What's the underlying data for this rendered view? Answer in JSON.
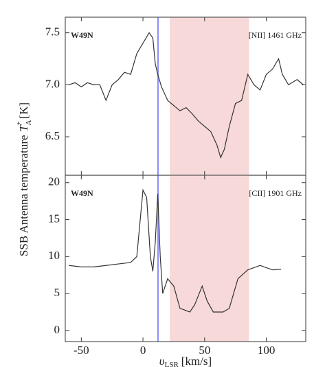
{
  "chart_data": [
    {
      "type": "line",
      "name_label": "W49N",
      "line_label": "[NII] 1461 GHz",
      "y_label": {
        "text": "SSB Antenna temperature",
        "symbol": "T",
        "sup": "*",
        "sub": "A",
        "unit": "[K]"
      },
      "xlim": [
        -63,
        132
      ],
      "xticks": [
        -50,
        0,
        50,
        100
      ],
      "ylim": [
        6.13,
        7.65
      ],
      "yticks": [
        6.5,
        {
          "value": 7,
          "label": "7.0"
        },
        7.5
      ],
      "shade": [
        21.7,
        86
      ],
      "shade_color": "#f7d9d9",
      "vline": 12.2,
      "vline_color": "#8c8cff",
      "x": [
        -60,
        -55,
        -50,
        -45,
        -40,
        -35,
        -30,
        -25,
        -20,
        -15,
        -10,
        -5,
        0,
        5,
        8,
        10,
        12,
        15,
        20,
        25,
        30,
        35,
        40,
        45,
        50,
        55,
        60,
        63,
        66,
        70,
        75,
        80,
        85,
        90,
        95,
        100,
        105,
        110,
        113,
        118,
        125,
        130
      ],
      "series": [
        {
          "color": "#333333",
          "values": [
            7.0,
            7.02,
            6.98,
            7.02,
            7.0,
            7.0,
            6.85,
            7.0,
            7.05,
            7.12,
            7.1,
            7.3,
            7.4,
            7.5,
            7.45,
            7.2,
            7.1,
            6.98,
            6.85,
            6.8,
            6.75,
            6.78,
            6.72,
            6.65,
            6.6,
            6.55,
            6.42,
            6.3,
            6.38,
            6.6,
            6.82,
            6.85,
            7.1,
            7.0,
            6.95,
            7.1,
            7.15,
            7.25,
            7.1,
            7.0,
            7.05,
            7.0
          ]
        }
      ]
    },
    {
      "type": "line",
      "name_label": "W49N",
      "line_label": "[CII] 1901 GHz",
      "x_label": {
        "symbol": "υ",
        "sub": "LSR",
        "unit": "[km/s]"
      },
      "xlim": [
        -63,
        132
      ],
      "xticks": [
        -50,
        0,
        50,
        100
      ],
      "ylim": [
        -1.5,
        21
      ],
      "yticks": [
        0,
        5,
        10,
        15,
        20
      ],
      "shade": [
        21.7,
        86
      ],
      "shade_color": "#f7d9d9",
      "vline": 12.2,
      "vline_color": "#8c8cff",
      "x": [
        -60,
        -50,
        -40,
        -30,
        -20,
        -10,
        -5,
        0,
        3,
        6,
        8,
        10,
        12,
        14,
        16,
        20,
        25,
        30,
        38,
        42,
        48,
        52,
        57,
        65,
        70,
        77,
        85,
        95,
        105,
        112
      ],
      "series": [
        {
          "color": "#333333",
          "values": [
            8.8,
            8.6,
            8.6,
            8.8,
            9.0,
            9.2,
            10,
            19,
            18,
            10,
            8,
            12,
            18.5,
            10,
            5,
            7,
            6,
            3,
            2.5,
            3.5,
            6,
            4,
            2.5,
            2.5,
            3,
            7,
            8.2,
            8.8,
            8.2,
            8.3
          ]
        }
      ]
    }
  ]
}
